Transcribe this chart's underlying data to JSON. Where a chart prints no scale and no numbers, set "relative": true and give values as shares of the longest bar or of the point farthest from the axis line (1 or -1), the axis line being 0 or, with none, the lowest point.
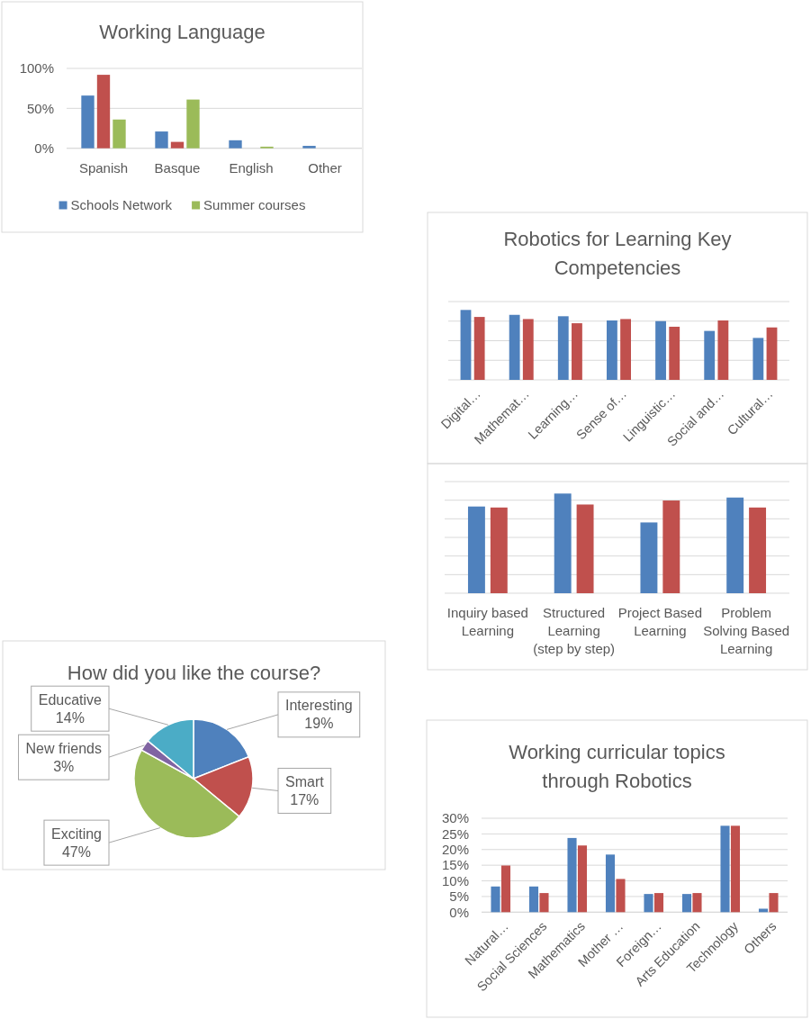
{
  "chart_data": [
    {
      "type": "bar",
      "title": "Working Language",
      "categories": [
        "Spanish",
        "Basque",
        "English",
        "Other"
      ],
      "series": [
        {
          "name": "Schools Network",
          "color": "#4f81bd",
          "values": [
            66,
            21,
            10,
            3
          ]
        },
        {
          "color": "#c0504d",
          "values": [
            92,
            8,
            null,
            null
          ]
        },
        {
          "name": "Summer courses",
          "color": "#9bbb59",
          "values": [
            36,
            61,
            2,
            null
          ]
        }
      ],
      "ylim": [
        0,
        100
      ],
      "yticks": [
        {
          "value": 0,
          "label": "0%"
        },
        {
          "value": 50,
          "label": "50%"
        },
        {
          "value": 100,
          "label": "100%"
        }
      ],
      "grid": "y",
      "legend": "bottom"
    },
    {
      "type": "bar",
      "title": "Robotics for Learning Key Competencies",
      "categories": [
        "Digital…",
        "Mathemat…",
        "Learning…",
        "Sense of…",
        "Linguistic…",
        "Social and…",
        "Cultural…"
      ],
      "relative": true,
      "series": [
        {
          "color": "#4f81bd",
          "values": [
            1,
            0.93,
            0.91,
            0.85,
            0.84,
            0.7,
            0.6
          ]
        },
        {
          "color": "#c0504d",
          "values": [
            0.9,
            0.87,
            0.81,
            0.87,
            0.76,
            0.85,
            0.75
          ]
        }
      ],
      "grid": "y"
    },
    {
      "type": "bar",
      "categories": [
        "Inquiry based Learning",
        "Structured Learning (step by step)",
        "Project Based Learning",
        "Problem Solving Based Learning"
      ],
      "relative": true,
      "series": [
        {
          "color": "#4f81bd",
          "values": [
            0.87,
            1,
            0.71,
            0.96
          ]
        },
        {
          "color": "#c0504d",
          "values": [
            0.86,
            0.89,
            0.93,
            0.86
          ]
        }
      ],
      "grid": "y"
    },
    {
      "type": "pie",
      "title": "How did you like the course?",
      "categories": [
        "Interesting",
        "Smart",
        "Exciting",
        "New friends",
        "Educative"
      ],
      "values": [
        19,
        17,
        47,
        3,
        14
      ],
      "colors": [
        "#4f81bd",
        "#c0504d",
        "#9bbb59",
        "#8064a2",
        "#4bacc6"
      ],
      "value_labels": [
        "19%",
        "17%",
        "47%",
        "3%",
        "14%"
      ]
    },
    {
      "type": "bar",
      "title": "Working curricular topics through Robotics",
      "categories": [
        "Natural…",
        "Social Sciences",
        "Mathematics",
        "Mother …",
        "Foreign…",
        "Arts Education",
        "Technology",
        "Others"
      ],
      "series": [
        {
          "color": "#4f81bd",
          "values": [
            8.2,
            8.2,
            23.7,
            18.4,
            5.8,
            5.8,
            27.6,
            1.1
          ]
        },
        {
          "color": "#c0504d",
          "values": [
            14.9,
            6.1,
            21.3,
            10.6,
            6.1,
            6.1,
            27.6,
            6.1
          ]
        }
      ],
      "ylim": [
        0,
        30
      ],
      "yticks": [
        {
          "value": 0,
          "label": "0%"
        },
        {
          "value": 5,
          "label": "5%"
        },
        {
          "value": 10,
          "label": "10%"
        },
        {
          "value": 15,
          "label": "15%"
        },
        {
          "value": 20,
          "label": "20%"
        },
        {
          "value": 25,
          "label": "25%"
        },
        {
          "value": 30,
          "label": "30%"
        }
      ],
      "grid": "y"
    }
  ]
}
